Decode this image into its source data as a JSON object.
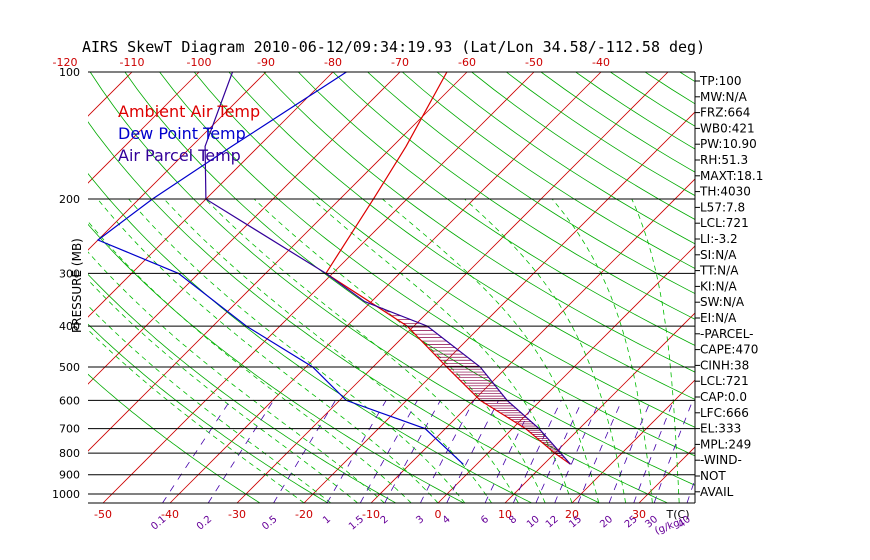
{
  "chart_data": {
    "type": "line",
    "title": "AIRS SkewT Diagram 2010-06-12/09:34:19.93 (Lat/Lon 34.58/-112.58 deg)",
    "ylabel": "PRESSURE (MB)",
    "y_scale": "log",
    "ylim": [
      1050,
      100
    ],
    "pressure_ticks": [
      100,
      200,
      300,
      400,
      500,
      600,
      700,
      800,
      900,
      1000
    ],
    "bottom_temp_ticks": [
      "-50",
      "-40",
      "-30",
      "-20",
      "-10",
      "0",
      "10",
      "20",
      "30"
    ],
    "bottom_temp_unit": "T(C)",
    "top_temp_ticks": [
      "-120",
      "-110",
      "-100",
      "-90",
      "-80",
      "-70",
      "-60",
      "-50",
      "-40"
    ],
    "mixing_ratio_ticks": [
      "0.1",
      "0.2",
      "0.5",
      "1",
      "1.5",
      "2",
      "3",
      "4",
      "6",
      "8",
      "10",
      "12",
      "15",
      "20",
      "25",
      "30",
      "40"
    ],
    "mixing_ratio_unit": "(g/kg)",
    "series": [
      {
        "name": "Ambient Air Temp",
        "color": "#dd0000",
        "points": [
          [
            100,
            -63
          ],
          [
            150,
            -58
          ],
          [
            200,
            -55
          ],
          [
            300,
            -51
          ],
          [
            400,
            -31
          ],
          [
            500,
            -19
          ],
          [
            600,
            -9
          ],
          [
            700,
            2
          ],
          [
            800,
            10
          ],
          [
            850,
            14
          ]
        ]
      },
      {
        "name": "Dew Point Temp",
        "color": "#0000cc",
        "points": [
          [
            100,
            -78
          ],
          [
            150,
            -84
          ],
          [
            200,
            -88
          ],
          [
            250,
            -90
          ],
          [
            300,
            -73
          ],
          [
            400,
            -55
          ],
          [
            500,
            -39
          ],
          [
            600,
            -29
          ],
          [
            700,
            -13
          ],
          [
            850,
            -2
          ]
        ]
      },
      {
        "name": "Air Parcel Temp",
        "color": "#330099",
        "points": [
          [
            100,
            -95
          ],
          [
            150,
            -88
          ],
          [
            200,
            -80
          ],
          [
            300,
            -51
          ],
          [
            350,
            -41
          ],
          [
            400,
            -28
          ],
          [
            500,
            -14
          ],
          [
            600,
            -5
          ],
          [
            700,
            4
          ],
          [
            850,
            14
          ]
        ]
      }
    ],
    "indices": [
      "TP:100",
      "MW:N/A",
      "FRZ:664",
      "WB0:421",
      "PW:10.90",
      "RH:51.3",
      "MAXT:18.1",
      "TH:4030",
      "L57:7.8",
      "LCL:721",
      "LI:-3.2",
      "SI:N/A",
      "TT:N/A",
      "KI:N/A",
      "SW:N/A",
      "EI:N/A",
      "-PARCEL-",
      "CAPE:470",
      "CINH:38",
      "LCL:721",
      "CAP:0.0",
      "LFC:666",
      "EL:333",
      "MPL:249",
      "-WIND-",
      "NOT",
      "AVAIL"
    ],
    "grid": true,
    "legend_position": "top-left"
  },
  "colors": {
    "isotherm": "#cc0000",
    "dry_adiabat": "#00aa00",
    "moist_adiabat": "#00bb00",
    "mixing_ratio": "#4400aa",
    "isobar": "#000000"
  }
}
